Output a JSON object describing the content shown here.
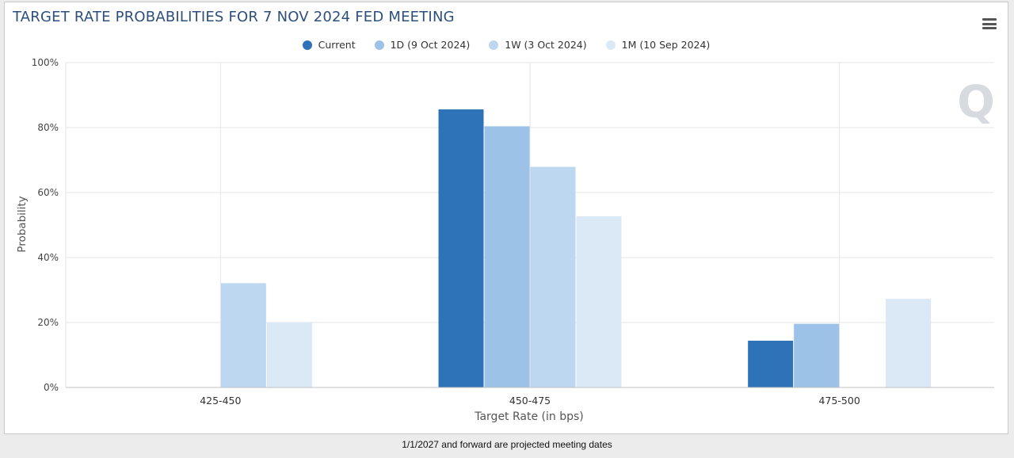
{
  "footer": "1/1/2027 and forward are projected meeting dates",
  "toolbar": {
    "menu_icon": "hamburger-menu-icon"
  },
  "watermark": {
    "letter": "Q"
  },
  "colors": {
    "grid": "#e6e6e6",
    "axis": "#c0c0c0",
    "series": [
      "#2e73b8",
      "#9cc2e7",
      "#bcd7ef",
      "#dbe9f6"
    ]
  },
  "chart_data": {
    "type": "bar",
    "title": "TARGET RATE PROBABILITIES FOR 7 NOV 2024 FED MEETING",
    "xlabel": "Target Rate (in bps)",
    "ylabel": "Probability",
    "categories": [
      "425-450",
      "450-475",
      "475-500"
    ],
    "yticks": [
      "0%",
      "20%",
      "40%",
      "60%",
      "80%",
      "100%"
    ],
    "ylim": [
      0,
      100
    ],
    "grid": true,
    "legend_position": "top-center",
    "series": [
      {
        "name": "Current",
        "values": [
          0,
          85.6,
          14.4
        ]
      },
      {
        "name": "1D (9 Oct 2024)",
        "values": [
          0,
          80.4,
          19.6
        ]
      },
      {
        "name": "1W (3 Oct 2024)",
        "values": [
          32.1,
          67.9,
          0
        ]
      },
      {
        "name": "1M (10 Sep 2024)",
        "values": [
          20.0,
          52.7,
          27.3
        ]
      }
    ]
  }
}
